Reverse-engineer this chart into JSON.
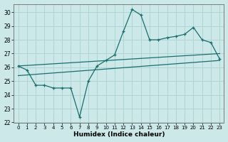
{
  "xlabel": "Humidex (Indice chaleur)",
  "background_color": "#cce8e8",
  "grid_color": "#afd4d4",
  "line_color": "#1a6e6e",
  "xlim": [
    -0.5,
    23.5
  ],
  "ylim": [
    22,
    30.6
  ],
  "yticks": [
    22,
    23,
    24,
    25,
    26,
    27,
    28,
    29,
    30
  ],
  "xticks": [
    0,
    1,
    2,
    3,
    4,
    5,
    6,
    7,
    8,
    9,
    10,
    11,
    12,
    13,
    14,
    15,
    16,
    17,
    18,
    19,
    20,
    21,
    22,
    23
  ],
  "main_series": [
    26.1,
    25.8,
    24.7,
    24.7,
    24.5,
    24.5,
    24.5,
    22.4,
    25.0,
    26.1,
    26.5,
    26.9,
    28.6,
    30.2,
    29.8,
    28.0,
    28.0,
    28.15,
    28.25,
    28.4,
    28.9,
    28.0,
    27.8,
    26.6
  ],
  "upper_line": [
    [
      0,
      26.1
    ],
    [
      23,
      27.0
    ]
  ],
  "lower_line": [
    [
      0,
      25.4
    ],
    [
      23,
      26.5
    ]
  ]
}
